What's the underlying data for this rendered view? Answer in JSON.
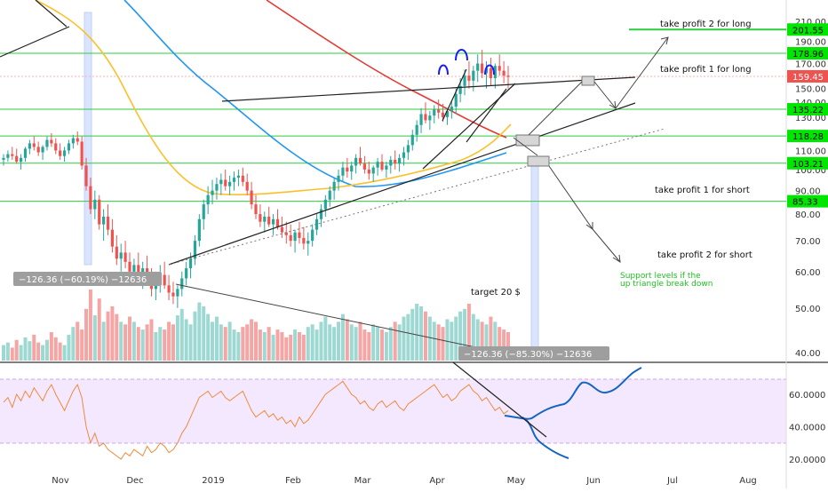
{
  "chart_data": [
    {
      "type": "candlestick",
      "panel": "price",
      "y_scale": "log",
      "y_ticks": [
        40,
        50,
        60,
        70,
        80,
        90,
        100,
        110,
        120,
        130,
        140,
        150,
        160,
        170,
        180,
        190,
        200,
        210
      ],
      "x_tick_labels": [
        "Nov",
        "Dec",
        "2019",
        "Feb",
        "Mar",
        "Apr",
        "May",
        "Jun",
        "Jul",
        "Aug"
      ],
      "price_badges": [
        {
          "value": "201.55",
          "color": "#00e600"
        },
        {
          "value": "178.96",
          "color": "#00e600"
        },
        {
          "value": "159.45",
          "color": "#ef5350"
        },
        {
          "value": "135.22",
          "color": "#00e600"
        },
        {
          "value": "118.28",
          "color": "#00e600"
        },
        {
          "value": "103.21",
          "color": "#00e600"
        },
        {
          "value": "85.33",
          "color": "#00e600"
        }
      ],
      "annotations": [
        "take profit 2 for long",
        "take profit 1 for long",
        "take profit 1 for short",
        "take profit 2 for short",
        "Support levels if the",
        "up triangle break down",
        "target 20 $"
      ],
      "measure_labels": [
        "−126.36 (−60.19%) −12636",
        "−126.36 (−85.30%) −12636"
      ],
      "candles": [
        [
          105,
          108,
          102,
          106
        ],
        [
          106,
          110,
          104,
          108
        ],
        [
          108,
          112,
          105,
          107
        ],
        [
          107,
          111,
          103,
          104
        ],
        [
          104,
          108,
          100,
          106
        ],
        [
          106,
          112,
          104,
          111
        ],
        [
          111,
          116,
          108,
          114
        ],
        [
          114,
          118,
          110,
          112
        ],
        [
          112,
          115,
          107,
          109
        ],
        [
          109,
          113,
          105,
          112
        ],
        [
          112,
          118,
          110,
          116
        ],
        [
          116,
          120,
          112,
          114
        ],
        [
          114,
          117,
          108,
          110
        ],
        [
          110,
          114,
          105,
          107
        ],
        [
          107,
          112,
          104,
          110
        ],
        [
          110,
          116,
          108,
          114
        ],
        [
          114,
          119,
          111,
          117
        ],
        [
          117,
          121,
          113,
          115
        ],
        [
          115,
          118,
          100,
          102
        ],
        [
          102,
          106,
          90,
          92
        ],
        [
          92,
          96,
          80,
          82
        ],
        [
          82,
          90,
          78,
          86
        ],
        [
          86,
          88,
          74,
          76
        ],
        [
          76,
          82,
          70,
          79
        ],
        [
          79,
          84,
          72,
          74
        ],
        [
          74,
          78,
          66,
          68
        ],
        [
          68,
          72,
          62,
          64
        ],
        [
          64,
          69,
          60,
          66
        ],
        [
          66,
          70,
          61,
          63
        ],
        [
          63,
          66,
          58,
          60
        ],
        [
          60,
          64,
          56,
          62
        ],
        [
          62,
          66,
          57,
          59
        ],
        [
          59,
          63,
          55,
          61
        ],
        [
          61,
          65,
          57,
          58
        ],
        [
          58,
          61,
          53,
          55
        ],
        [
          55,
          60,
          52,
          57
        ],
        [
          57,
          62,
          54,
          59
        ],
        [
          59,
          63,
          55,
          56
        ],
        [
          56,
          59,
          52,
          54
        ],
        [
          54,
          57,
          51,
          53
        ],
        [
          53,
          56,
          50,
          55
        ],
        [
          55,
          60,
          53,
          58
        ],
        [
          58,
          63,
          56,
          61
        ],
        [
          61,
          66,
          58,
          64
        ],
        [
          64,
          72,
          62,
          70
        ],
        [
          70,
          80,
          68,
          78
        ],
        [
          78,
          86,
          74,
          84
        ],
        [
          84,
          92,
          80,
          88
        ],
        [
          88,
          95,
          84,
          90
        ],
        [
          90,
          96,
          86,
          93
        ],
        [
          93,
          98,
          88,
          95
        ],
        [
          95,
          100,
          90,
          92
        ],
        [
          92,
          97,
          88,
          94
        ],
        [
          94,
          99,
          90,
          96
        ],
        [
          96,
          100,
          92,
          97
        ],
        [
          97,
          101,
          92,
          94
        ],
        [
          94,
          98,
          88,
          90
        ],
        [
          90,
          94,
          82,
          84
        ],
        [
          84,
          88,
          78,
          80
        ],
        [
          80,
          84,
          75,
          77
        ],
        [
          77,
          81,
          73,
          79
        ],
        [
          79,
          83,
          75,
          76
        ],
        [
          76,
          80,
          72,
          78
        ],
        [
          78,
          82,
          74,
          75
        ],
        [
          75,
          79,
          71,
          73
        ],
        [
          73,
          77,
          69,
          72
        ],
        [
          72,
          76,
          68,
          70
        ],
        [
          70,
          74,
          66,
          73
        ],
        [
          73,
          77,
          69,
          71
        ],
        [
          71,
          75,
          67,
          69
        ],
        [
          69,
          73,
          65,
          70
        ],
        [
          70,
          76,
          68,
          74
        ],
        [
          74,
          80,
          72,
          78
        ],
        [
          78,
          84,
          75,
          82
        ],
        [
          82,
          88,
          79,
          86
        ],
        [
          86,
          92,
          83,
          90
        ],
        [
          90,
          96,
          86,
          94
        ],
        [
          94,
          100,
          90,
          97
        ],
        [
          97,
          104,
          94,
          101
        ],
        [
          101,
          106,
          96,
          99
        ],
        [
          99,
          104,
          95,
          102
        ],
        [
          102,
          108,
          98,
          106
        ],
        [
          106,
          112,
          102,
          103
        ],
        [
          103,
          107,
          98,
          100
        ],
        [
          100,
          104,
          95,
          98
        ],
        [
          98,
          102,
          94,
          101
        ],
        [
          101,
          106,
          97,
          104
        ],
        [
          104,
          108,
          99,
          100
        ],
        [
          100,
          104,
          96,
          102
        ],
        [
          102,
          107,
          98,
          105
        ],
        [
          105,
          110,
          100,
          103
        ],
        [
          103,
          108,
          99,
          106
        ],
        [
          106,
          112,
          102,
          109
        ],
        [
          109,
          116,
          105,
          113
        ],
        [
          113,
          122,
          110,
          119
        ],
        [
          119,
          128,
          115,
          125
        ],
        [
          125,
          136,
          120,
          132
        ],
        [
          132,
          140,
          126,
          128
        ],
        [
          128,
          134,
          122,
          131
        ],
        [
          131,
          138,
          126,
          135
        ],
        [
          135,
          142,
          129,
          133
        ],
        [
          133,
          139,
          127,
          130
        ],
        [
          130,
          136,
          125,
          134
        ],
        [
          134,
          141,
          129,
          137
        ],
        [
          137,
          150,
          132,
          146
        ],
        [
          146,
          158,
          140,
          152
        ],
        [
          152,
          165,
          145,
          160
        ],
        [
          160,
          172,
          150,
          156
        ],
        [
          156,
          168,
          148,
          164
        ],
        [
          164,
          178,
          155,
          170
        ],
        [
          170,
          182,
          158,
          162
        ],
        [
          162,
          172,
          150,
          166
        ],
        [
          166,
          175,
          152,
          158
        ],
        [
          158,
          170,
          150,
          168
        ],
        [
          168,
          178,
          160,
          164
        ],
        [
          164,
          172,
          154,
          160
        ],
        [
          160,
          168,
          150,
          159
        ]
      ],
      "volume": [
        12,
        14,
        10,
        16,
        12,
        18,
        15,
        20,
        14,
        12,
        16,
        22,
        18,
        14,
        12,
        20,
        26,
        30,
        24,
        40,
        55,
        35,
        48,
        30,
        38,
        42,
        36,
        30,
        28,
        34,
        30,
        26,
        24,
        28,
        32,
        22,
        26,
        24,
        30,
        28,
        35,
        40,
        32,
        28,
        38,
        45,
        42,
        36,
        30,
        34,
        28,
        26,
        30,
        24,
        22,
        26,
        28,
        32,
        30,
        24,
        22,
        26,
        20,
        24,
        22,
        18,
        20,
        24,
        22,
        20,
        26,
        28,
        24,
        30,
        34,
        28,
        26,
        30,
        36,
        32,
        28,
        26,
        30,
        24,
        22,
        28,
        26,
        24,
        22,
        26,
        30,
        28,
        34,
        36,
        40,
        44,
        42,
        38,
        34,
        30,
        28,
        26,
        32,
        30,
        34,
        38,
        40,
        44,
        36,
        32,
        30,
        28,
        34,
        30,
        26,
        24,
        22
      ],
      "rsi_y_ticks": [
        20,
        40,
        60
      ],
      "rsi_band": [
        30,
        70
      ],
      "rsi": [
        55,
        58,
        52,
        60,
        56,
        62,
        58,
        64,
        60,
        56,
        62,
        66,
        60,
        55,
        50,
        56,
        62,
        66,
        58,
        40,
        30,
        36,
        28,
        30,
        26,
        24,
        22,
        20,
        24,
        22,
        26,
        24,
        22,
        28,
        24,
        26,
        30,
        28,
        24,
        26,
        30,
        36,
        40,
        46,
        52,
        58,
        60,
        62,
        58,
        60,
        62,
        58,
        56,
        58,
        60,
        62,
        56,
        50,
        46,
        48,
        50,
        46,
        48,
        44,
        46,
        42,
        44,
        40,
        46,
        42,
        44,
        48,
        52,
        56,
        60,
        62,
        64,
        66,
        68,
        64,
        60,
        58,
        54,
        56,
        52,
        50,
        54,
        56,
        52,
        54,
        56,
        52,
        50,
        54,
        56,
        58,
        60,
        62,
        64,
        66,
        62,
        58,
        60,
        56,
        58,
        62,
        64,
        66,
        62,
        60,
        56,
        58,
        54,
        50,
        52,
        48,
        50
      ]
    }
  ]
}
